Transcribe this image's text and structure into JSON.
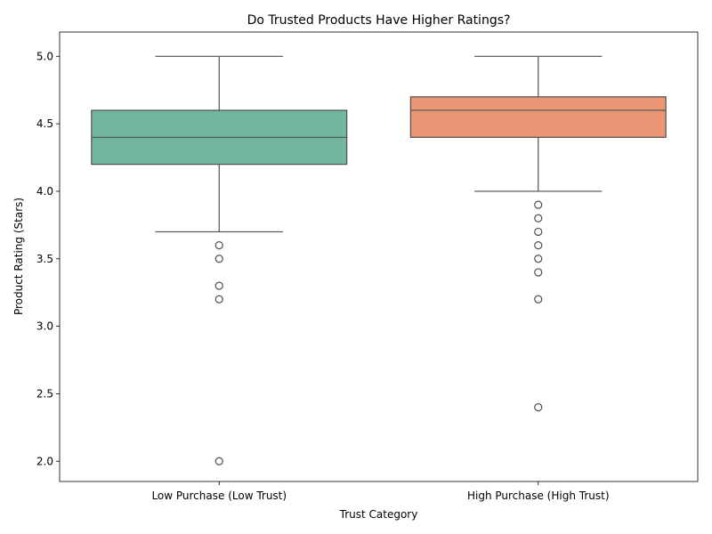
{
  "chart_data": {
    "type": "boxplot",
    "title": "Do Trusted Products Have Higher Ratings?",
    "xlabel": "Trust Category",
    "ylabel": "Product Rating (Stars)",
    "ylim": [
      1.85,
      5.18
    ],
    "yticks": [
      2.0,
      2.5,
      3.0,
      3.5,
      4.0,
      4.5,
      5.0
    ],
    "ytick_labels": [
      "2.0",
      "2.5",
      "3.0",
      "3.5",
      "4.0",
      "4.5",
      "5.0"
    ],
    "grid": false,
    "categories": [
      "Low Purchase (Low Trust)",
      "High Purchase (High Trust)"
    ],
    "boxes": [
      {
        "category": "Low Purchase (Low Trust)",
        "color": "#72b6a1",
        "whisker_low": 3.7,
        "q1": 4.2,
        "median": 4.4,
        "q3": 4.6,
        "whisker_high": 5.0,
        "outliers": [
          3.6,
          3.5,
          3.3,
          3.2,
          2.0
        ]
      },
      {
        "category": "High Purchase (High Trust)",
        "color": "#e99675",
        "whisker_low": 4.0,
        "q1": 4.4,
        "median": 4.6,
        "q3": 4.7,
        "whisker_high": 5.0,
        "outliers": [
          3.9,
          3.8,
          3.7,
          3.6,
          3.5,
          3.4,
          3.2,
          2.4
        ]
      }
    ]
  }
}
